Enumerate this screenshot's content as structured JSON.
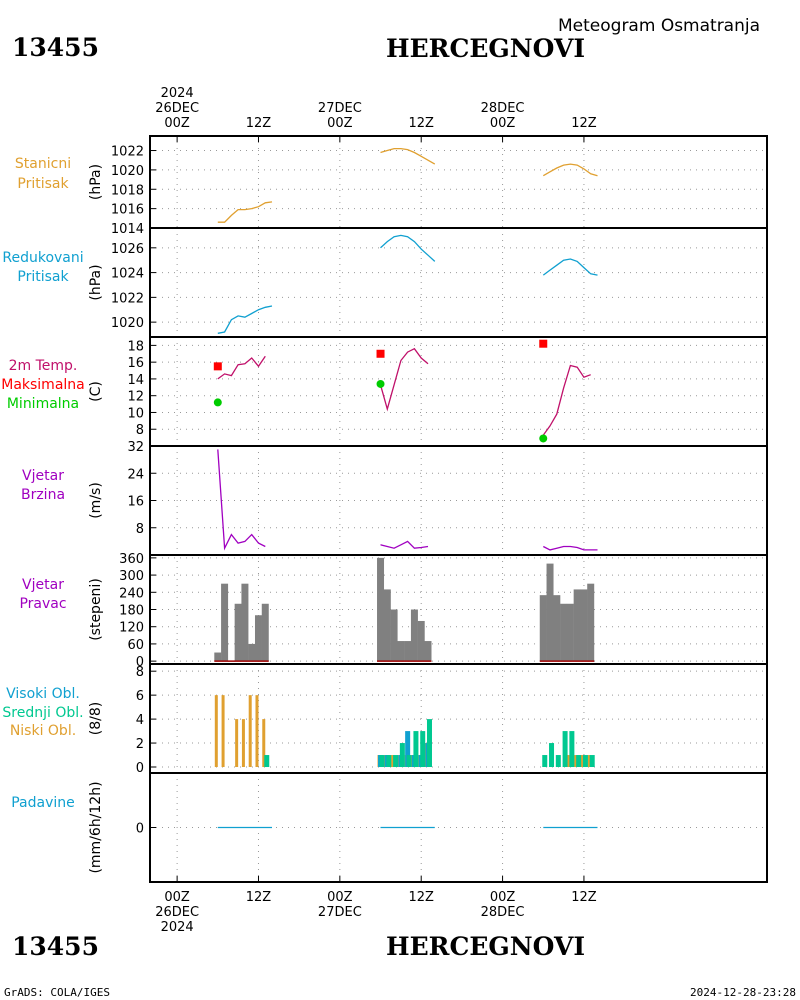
{
  "header": {
    "station_id": "13455",
    "station_name": "HERCEGNOVI",
    "title": "Meteogram Osmatranja"
  },
  "footer": {
    "station_id": "13455",
    "station_name": "HERCEGNOVI",
    "credit": "GrADS: COLA/IGES",
    "timestamp": "2024-12-28-23:28"
  },
  "colors": {
    "pressure": "#e0a030",
    "reduced_pressure": "#10a0d0",
    "temperature": "#c0106a",
    "tmax": "#ff0000",
    "tmin": "#00cc00",
    "wind": "#a000c0",
    "bars": "#808080",
    "bars_base": "#a00000",
    "cloud_low": "#e0a030",
    "cloud_mid": "#10a0d0",
    "cloud_high": "#00c890",
    "precip": "#10a0d0"
  },
  "chart_data": {
    "type": "line",
    "x_unit": "hours from 2024-12-26 00Z",
    "x_range": [
      -4,
      87
    ],
    "time_axis": {
      "top": [
        {
          "h": 0,
          "lines": [
            "2024",
            "26DEC",
            "00Z"
          ]
        },
        {
          "h": 12,
          "lines": [
            "12Z"
          ]
        },
        {
          "h": 24,
          "lines": [
            "27DEC",
            "00Z"
          ]
        },
        {
          "h": 36,
          "lines": [
            "12Z"
          ]
        },
        {
          "h": 48,
          "lines": [
            "28DEC",
            "00Z"
          ]
        },
        {
          "h": 60,
          "lines": [
            "12Z"
          ]
        }
      ],
      "bottom": [
        {
          "h": 0,
          "lines": [
            "00Z",
            "26DEC",
            "2024"
          ]
        },
        {
          "h": 12,
          "lines": [
            "12Z"
          ]
        },
        {
          "h": 24,
          "lines": [
            "00Z",
            "27DEC"
          ]
        },
        {
          "h": 36,
          "lines": [
            "12Z"
          ]
        },
        {
          "h": 48,
          "lines": [
            "00Z",
            "28DEC"
          ]
        },
        {
          "h": 60,
          "lines": [
            "12Z"
          ]
        }
      ]
    },
    "panels": [
      {
        "key": "station_pressure",
        "labels": [
          "Stanicni",
          "Pritisak"
        ],
        "ylabel": "(hPa)",
        "ylim": [
          1014,
          1023.5
        ],
        "yticks": [
          1014,
          1016,
          1018,
          1020,
          1022
        ],
        "series": [
          {
            "kind": "line",
            "segments": [
              [
                [
                  6,
                  1014.6
                ],
                [
                  7,
                  1014.6
                ],
                [
                  8,
                  1015.3
                ],
                [
                  9,
                  1015.9
                ],
                [
                  10,
                  1015.9
                ],
                [
                  11,
                  1016.0
                ],
                [
                  12,
                  1016.2
                ],
                [
                  13,
                  1016.6
                ],
                [
                  14,
                  1016.7
                ]
              ],
              [
                [
                  30,
                  1021.8
                ],
                [
                  31,
                  1022.0
                ],
                [
                  32,
                  1022.2
                ],
                [
                  33,
                  1022.2
                ],
                [
                  34,
                  1022.1
                ],
                [
                  35,
                  1021.8
                ],
                [
                  36,
                  1021.4
                ],
                [
                  37,
                  1021.0
                ],
                [
                  38,
                  1020.6
                ]
              ],
              [
                [
                  54,
                  1019.4
                ],
                [
                  55,
                  1019.8
                ],
                [
                  56,
                  1020.2
                ],
                [
                  57,
                  1020.5
                ],
                [
                  58,
                  1020.6
                ],
                [
                  59,
                  1020.5
                ],
                [
                  60,
                  1020.1
                ],
                [
                  61,
                  1019.6
                ],
                [
                  62,
                  1019.4
                ]
              ]
            ]
          }
        ]
      },
      {
        "key": "reduced_pressure",
        "labels": [
          "Redukovani",
          "Pritisak"
        ],
        "ylabel": "(hPa)",
        "ylim": [
          1018.8,
          1027.6
        ],
        "yticks": [
          1020,
          1022,
          1024,
          1026
        ],
        "series": [
          {
            "kind": "line",
            "segments": [
              [
                [
                  6,
                  1019.1
                ],
                [
                  7,
                  1019.2
                ],
                [
                  8,
                  1020.2
                ],
                [
                  9,
                  1020.5
                ],
                [
                  10,
                  1020.4
                ],
                [
                  11,
                  1020.7
                ],
                [
                  12,
                  1021.0
                ],
                [
                  13,
                  1021.2
                ],
                [
                  14,
                  1021.3
                ]
              ],
              [
                [
                  30,
                  1026.0
                ],
                [
                  31,
                  1026.5
                ],
                [
                  32,
                  1026.9
                ],
                [
                  33,
                  1027.0
                ],
                [
                  34,
                  1026.9
                ],
                [
                  35,
                  1026.5
                ],
                [
                  36,
                  1025.9
                ],
                [
                  37,
                  1025.4
                ],
                [
                  38,
                  1024.9
                ]
              ],
              [
                [
                  54,
                  1023.8
                ],
                [
                  55,
                  1024.2
                ],
                [
                  56,
                  1024.6
                ],
                [
                  57,
                  1025.0
                ],
                [
                  58,
                  1025.1
                ],
                [
                  59,
                  1024.9
                ],
                [
                  60,
                  1024.4
                ],
                [
                  61,
                  1023.9
                ],
                [
                  62,
                  1023.8
                ]
              ]
            ]
          }
        ]
      },
      {
        "key": "temperature",
        "labels": [
          "2m Temp.",
          "Maksimalna",
          "Minimalna"
        ],
        "ylabel": "(C)",
        "ylim": [
          6,
          19
        ],
        "yticks": [
          8,
          10,
          12,
          14,
          16,
          18
        ],
        "series": [
          {
            "kind": "line",
            "segments": [
              [
                [
                  6,
                  14.0
                ],
                [
                  7,
                  14.6
                ],
                [
                  8,
                  14.4
                ],
                [
                  9,
                  15.7
                ],
                [
                  10,
                  15.8
                ],
                [
                  11,
                  16.5
                ],
                [
                  12,
                  15.5
                ],
                [
                  13,
                  16.7
                ]
              ],
              [
                [
                  30,
                  13.3
                ],
                [
                  31,
                  10.4
                ],
                [
                  32,
                  13.3
                ],
                [
                  33,
                  16.2
                ],
                [
                  34,
                  17.2
                ],
                [
                  35,
                  17.6
                ],
                [
                  36,
                  16.5
                ],
                [
                  37,
                  15.8
                ]
              ],
              [
                [
                  54,
                  7.3
                ],
                [
                  55,
                  8.4
                ],
                [
                  56,
                  9.8
                ],
                [
                  57,
                  12.9
                ],
                [
                  58,
                  15.6
                ],
                [
                  59,
                  15.4
                ],
                [
                  60,
                  14.2
                ],
                [
                  61,
                  14.5
                ]
              ]
            ]
          },
          {
            "kind": "square",
            "points": [
              [
                6,
                15.5
              ],
              [
                30,
                17.0
              ],
              [
                54,
                18.2
              ]
            ]
          },
          {
            "kind": "dot",
            "points": [
              [
                6,
                11.2
              ],
              [
                30,
                13.4
              ],
              [
                54,
                6.9
              ]
            ]
          }
        ]
      },
      {
        "key": "wind_speed",
        "labels": [
          "Vjetar",
          "Brzina"
        ],
        "ylabel": "(m/s)",
        "ylim": [
          0,
          32
        ],
        "yticks": [
          8,
          16,
          24,
          32
        ],
        "series": [
          {
            "kind": "line",
            "segments": [
              [
                [
                  6,
                  31
                ],
                [
                  7,
                  2
                ],
                [
                  8,
                  6
                ],
                [
                  9,
                  3.5
                ],
                [
                  10,
                  4
                ],
                [
                  11,
                  6
                ],
                [
                  12,
                  3.5
                ],
                [
                  13,
                  2.5
                ]
              ],
              [
                [
                  30,
                  3
                ],
                [
                  31,
                  2.5
                ],
                [
                  32,
                  2
                ],
                [
                  33,
                  3
                ],
                [
                  34,
                  4
                ],
                [
                  35,
                  2
                ],
                [
                  36,
                  2.2
                ],
                [
                  37,
                  2.5
                ]
              ],
              [
                [
                  54,
                  2.5
                ],
                [
                  55,
                  1.5
                ],
                [
                  56,
                  2.0
                ],
                [
                  57,
                  2.5
                ],
                [
                  58,
                  2.5
                ],
                [
                  59,
                  2.2
                ],
                [
                  60,
                  1.5
                ],
                [
                  61,
                  1.5
                ],
                [
                  62,
                  1.5
                ]
              ]
            ]
          }
        ]
      },
      {
        "key": "wind_direction",
        "labels": [
          "Vjetar",
          "Pravac"
        ],
        "ylabel": "(stepeni)",
        "ylim": [
          -10,
          370
        ],
        "yticks": [
          0,
          60,
          120,
          180,
          240,
          300,
          360
        ],
        "series": [
          {
            "kind": "bar",
            "hours": [
              6,
              7,
              8,
              9,
              10,
              11,
              12,
              13
            ],
            "values": [
              30,
              270,
              0,
              200,
              270,
              60,
              160,
              200
            ]
          },
          {
            "kind": "bar",
            "hours": [
              30,
              31,
              32,
              33,
              34,
              35,
              36,
              37
            ],
            "values": [
              360,
              250,
              180,
              70,
              70,
              180,
              140,
              70
            ]
          },
          {
            "kind": "bar",
            "hours": [
              54,
              55,
              56,
              57,
              58,
              59,
              60,
              61
            ],
            "values": [
              230,
              340,
              230,
              200,
              200,
              250,
              250,
              270
            ]
          }
        ]
      },
      {
        "key": "cloud_cover",
        "labels": [
          "Visoki Obl.",
          "Srednji Obl.",
          "Niski Obl."
        ],
        "ylabel": "(8/8)",
        "ylim": [
          -0.5,
          8.6
        ],
        "yticks": [
          0,
          2,
          4,
          6,
          8
        ],
        "series": [
          {
            "kind": "cloud",
            "name": "Niski Obl.",
            "hours": [
              6,
              7,
              8,
              9,
              10,
              11,
              12,
              13,
              30,
              31,
              32,
              33,
              34,
              35,
              36,
              37,
              54,
              55,
              56,
              57,
              58,
              59,
              60,
              61
            ],
            "values": [
              6,
              6,
              0,
              4,
              4,
              6,
              6,
              4,
              1,
              1,
              1,
              1,
              1,
              1,
              1,
              2,
              0,
              0,
              0,
              0,
              1,
              1,
              1,
              1
            ]
          },
          {
            "kind": "cloud",
            "name": "Srednji Obl.",
            "hours": [
              30,
              31,
              32,
              33,
              34,
              35,
              36,
              37
            ],
            "values": [
              1,
              1,
              0,
              1,
              3,
              1,
              1,
              2
            ]
          },
          {
            "kind": "cloud",
            "name": "Visoki Obl.",
            "hours": [
              13,
              30,
              31,
              32,
              33,
              34,
              35,
              36,
              37,
              54,
              55,
              56,
              57,
              58,
              59,
              60,
              61
            ],
            "values": [
              1,
              1,
              1,
              1,
              2,
              1,
              3,
              3,
              4,
              1,
              2,
              1,
              3,
              3,
              1,
              1,
              1
            ]
          }
        ]
      },
      {
        "key": "precipitation",
        "labels": [
          "Padavine"
        ],
        "ylabel": "(mm/6h/12h)",
        "ylim": [
          -1,
          1
        ],
        "yticks": [
          0
        ],
        "series": [
          {
            "kind": "line",
            "segments": [
              [
                [
                  6,
                  0
                ],
                [
                  14,
                  0
                ]
              ],
              [
                [
                  30,
                  0
                ],
                [
                  38,
                  0
                ]
              ],
              [
                [
                  54,
                  0
                ],
                [
                  62,
                  0
                ]
              ]
            ]
          }
        ]
      }
    ]
  }
}
